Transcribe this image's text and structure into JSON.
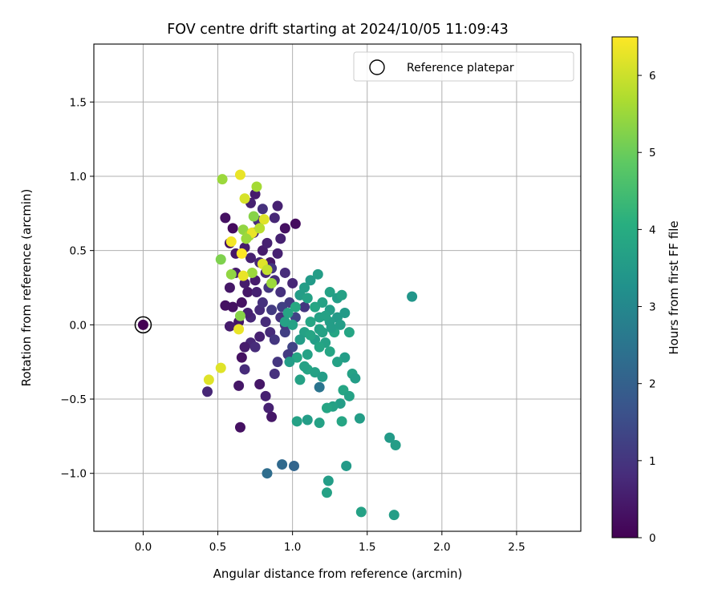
{
  "chart_data": {
    "type": "scatter",
    "title": "FOV centre drift starting at 2024/10/05 11:09:43",
    "xlabel": "Angular distance from reference (arcmin)",
    "ylabel": "Rotation from reference (arcmin)",
    "xlim": [
      -0.33,
      2.93
    ],
    "ylim": [
      -1.39,
      1.89
    ],
    "xticks": [
      0.0,
      0.5,
      1.0,
      1.5,
      2.0,
      2.5
    ],
    "xtick_labels": [
      "0.0",
      "0.5",
      "1.0",
      "1.5",
      "2.0",
      "2.5"
    ],
    "yticks": [
      -1.0,
      -0.5,
      0.0,
      0.5,
      1.0,
      1.5
    ],
    "ytick_labels": [
      "−1.0",
      "−0.5",
      "0.0",
      "0.5",
      "1.0",
      "1.5"
    ],
    "grid": true,
    "legend": {
      "placement": "top-right",
      "entries": [
        "Reference platepar"
      ]
    },
    "reference_point": {
      "x": 0.0,
      "y": 0.0,
      "hours": 0.0
    },
    "colorbar": {
      "label": "Hours from first FF file",
      "colormap": "viridis",
      "range": [
        0,
        6.5
      ],
      "ticks": [
        0,
        1,
        2,
        3,
        4,
        5,
        6
      ],
      "tick_labels": [
        "0",
        "1",
        "2",
        "3",
        "4",
        "5",
        "6"
      ]
    },
    "points": [
      [
        0.58,
        0.55,
        0.3
      ],
      [
        0.62,
        0.48,
        0.4
      ],
      [
        0.68,
        0.52,
        0.5
      ],
      [
        0.72,
        0.45,
        0.6
      ],
      [
        0.8,
        0.5,
        0.5
      ],
      [
        0.85,
        0.42,
        0.4
      ],
      [
        0.9,
        0.48,
        0.6
      ],
      [
        0.75,
        0.3,
        0.5
      ],
      [
        0.7,
        0.22,
        0.4
      ],
      [
        0.66,
        0.15,
        0.3
      ],
      [
        0.82,
        0.35,
        0.7
      ],
      [
        0.88,
        0.3,
        0.8
      ],
      [
        0.92,
        0.22,
        0.9
      ],
      [
        0.95,
        0.35,
        0.8
      ],
      [
        1.0,
        0.28,
        0.7
      ],
      [
        1.05,
        0.2,
        0.9
      ],
      [
        1.08,
        0.12,
        1.0
      ],
      [
        0.98,
        0.15,
        1.1
      ],
      [
        0.78,
        0.1,
        0.8
      ],
      [
        0.72,
        0.05,
        0.7
      ],
      [
        0.64,
        0.02,
        0.4
      ],
      [
        0.6,
        0.12,
        0.3
      ],
      [
        0.55,
        0.13,
        0.3
      ],
      [
        0.58,
        0.25,
        0.4
      ],
      [
        0.62,
        0.35,
        0.5
      ],
      [
        0.74,
        0.62,
        0.7
      ],
      [
        0.77,
        0.7,
        0.8
      ],
      [
        0.8,
        0.78,
        0.9
      ],
      [
        0.72,
        0.82,
        0.6
      ],
      [
        0.75,
        0.88,
        0.5
      ],
      [
        0.9,
        0.8,
        0.6
      ],
      [
        0.88,
        0.72,
        0.7
      ],
      [
        0.95,
        0.65,
        0.3
      ],
      [
        1.02,
        0.68,
        0.2
      ],
      [
        0.92,
        0.58,
        0.6
      ],
      [
        0.55,
        0.72,
        0.3
      ],
      [
        0.6,
        0.65,
        0.2
      ],
      [
        0.86,
        0.38,
        1.0
      ],
      [
        0.92,
        0.05,
        0.9
      ],
      [
        0.85,
        -0.05,
        0.8
      ],
      [
        0.78,
        -0.08,
        0.6
      ],
      [
        0.72,
        -0.12,
        0.7
      ],
      [
        0.68,
        -0.15,
        0.5
      ],
      [
        0.66,
        -0.22,
        0.3
      ],
      [
        0.75,
        -0.15,
        0.8
      ],
      [
        0.88,
        -0.1,
        1.0
      ],
      [
        0.95,
        -0.05,
        1.2
      ],
      [
        1.0,
        -0.15,
        1.3
      ],
      [
        0.97,
        -0.2,
        1.1
      ],
      [
        0.9,
        -0.25,
        1.0
      ],
      [
        0.68,
        -0.3,
        0.8
      ],
      [
        0.88,
        -0.33,
        0.9
      ],
      [
        0.78,
        -0.4,
        0.4
      ],
      [
        0.82,
        -0.48,
        0.6
      ],
      [
        0.84,
        -0.56,
        0.6
      ],
      [
        0.86,
        -0.62,
        0.4
      ],
      [
        0.64,
        -0.41,
        0.4
      ],
      [
        0.43,
        -0.45,
        0.7
      ],
      [
        0.65,
        -0.69,
        0.3
      ],
      [
        0.58,
        -0.01,
        0.5
      ],
      [
        0.7,
        0.08,
        0.6
      ],
      [
        0.8,
        0.15,
        0.9
      ],
      [
        0.84,
        0.25,
        1.0
      ],
      [
        0.86,
        0.1,
        1.1
      ],
      [
        0.93,
        0.12,
        1.2
      ],
      [
        1.02,
        0.05,
        1.3
      ],
      [
        0.95,
        0.0,
        1.0
      ],
      [
        0.82,
        0.02,
        0.8
      ],
      [
        0.76,
        0.22,
        0.6
      ],
      [
        0.68,
        0.28,
        0.5
      ],
      [
        0.83,
        0.55,
        0.6
      ],
      [
        0.78,
        0.42,
        0.7
      ],
      [
        1.05,
        0.2,
        3.6
      ],
      [
        1.1,
        0.18,
        3.7
      ],
      [
        1.15,
        0.12,
        3.8
      ],
      [
        1.2,
        0.15,
        3.7
      ],
      [
        1.25,
        0.1,
        3.6
      ],
      [
        1.3,
        0.05,
        3.5
      ],
      [
        1.18,
        0.05,
        3.7
      ],
      [
        1.12,
        0.02,
        3.8
      ],
      [
        1.08,
        -0.05,
        3.7
      ],
      [
        1.15,
        -0.1,
        3.6
      ],
      [
        1.22,
        -0.12,
        3.7
      ],
      [
        1.28,
        -0.05,
        3.8
      ],
      [
        1.32,
        0.0,
        3.6
      ],
      [
        1.35,
        0.08,
        3.5
      ],
      [
        1.25,
        0.02,
        3.6
      ],
      [
        1.2,
        -0.05,
        3.7
      ],
      [
        1.18,
        -0.15,
        3.8
      ],
      [
        1.1,
        -0.2,
        3.7
      ],
      [
        1.05,
        -0.1,
        3.6
      ],
      [
        1.0,
        0.0,
        3.7
      ],
      [
        0.97,
        0.08,
        3.8
      ],
      [
        0.95,
        0.02,
        3.7
      ],
      [
        1.02,
        0.12,
        3.9
      ],
      [
        1.08,
        0.25,
        3.6
      ],
      [
        1.12,
        0.3,
        3.5
      ],
      [
        1.17,
        0.34,
        3.6
      ],
      [
        1.25,
        0.22,
        3.7
      ],
      [
        1.3,
        0.18,
        3.6
      ],
      [
        1.33,
        0.2,
        3.7
      ],
      [
        1.38,
        -0.05,
        3.8
      ],
      [
        1.35,
        -0.22,
        3.6
      ],
      [
        1.3,
        -0.25,
        3.7
      ],
      [
        1.25,
        -0.18,
        3.8
      ],
      [
        1.4,
        -0.33,
        3.7
      ],
      [
        1.42,
        -0.36,
        3.6
      ],
      [
        1.34,
        -0.44,
        3.8
      ],
      [
        1.38,
        -0.48,
        3.7
      ],
      [
        1.32,
        -0.53,
        3.6
      ],
      [
        1.27,
        -0.55,
        3.7
      ],
      [
        1.23,
        -0.56,
        3.8
      ],
      [
        1.18,
        -0.66,
        3.7
      ],
      [
        1.1,
        -0.64,
        3.6
      ],
      [
        1.03,
        -0.65,
        3.7
      ],
      [
        1.33,
        -0.65,
        3.8
      ],
      [
        1.45,
        -0.63,
        3.6
      ],
      [
        1.05,
        -0.37,
        3.7
      ],
      [
        1.1,
        -0.3,
        3.8
      ],
      [
        1.15,
        -0.32,
        3.7
      ],
      [
        1.2,
        -0.35,
        3.6
      ],
      [
        1.08,
        -0.28,
        3.7
      ],
      [
        1.03,
        -0.22,
        3.8
      ],
      [
        0.98,
        -0.25,
        3.6
      ],
      [
        1.18,
        -0.42,
        2.5
      ],
      [
        1.65,
        -0.76,
        3.5
      ],
      [
        1.69,
        -0.81,
        3.6
      ],
      [
        1.8,
        0.19,
        3.4
      ],
      [
        1.36,
        -0.95,
        3.5
      ],
      [
        1.24,
        -1.05,
        3.6
      ],
      [
        1.23,
        -1.13,
        3.7
      ],
      [
        1.46,
        -1.26,
        3.7
      ],
      [
        1.68,
        -1.28,
        3.6
      ],
      [
        1.01,
        -0.95,
        2.1
      ],
      [
        0.93,
        -0.94,
        2.2
      ],
      [
        0.83,
        -1.0,
        2.3
      ],
      [
        1.18,
        -0.03,
        3.7
      ],
      [
        1.26,
        -0.02,
        3.6
      ],
      [
        1.12,
        -0.07,
        3.8
      ],
      [
        1.22,
        0.06,
        3.7
      ],
      [
        0.65,
        1.01,
        6.3
      ],
      [
        0.53,
        0.98,
        5.5
      ],
      [
        0.76,
        0.93,
        5.6
      ],
      [
        0.68,
        0.85,
        6.1
      ],
      [
        0.74,
        0.73,
        5.3
      ],
      [
        0.81,
        0.71,
        6.2
      ],
      [
        0.67,
        0.64,
        5.4
      ],
      [
        0.71,
        0.6,
        5.6
      ],
      [
        0.73,
        0.62,
        6.3
      ],
      [
        0.69,
        0.58,
        5.5
      ],
      [
        0.78,
        0.65,
        5.8
      ],
      [
        0.59,
        0.56,
        6.4
      ],
      [
        0.66,
        0.48,
        6.5
      ],
      [
        0.52,
        0.44,
        5.2
      ],
      [
        0.73,
        0.35,
        5.5
      ],
      [
        0.67,
        0.33,
        6.3
      ],
      [
        0.59,
        0.34,
        5.4
      ],
      [
        0.8,
        0.41,
        6.2
      ],
      [
        0.83,
        0.37,
        5.9
      ],
      [
        0.86,
        0.28,
        5.5
      ],
      [
        0.65,
        0.06,
        5.3
      ],
      [
        0.64,
        -0.03,
        6.3
      ],
      [
        0.52,
        -0.29,
        6.2
      ],
      [
        0.44,
        -0.37,
        6.2
      ]
    ]
  }
}
